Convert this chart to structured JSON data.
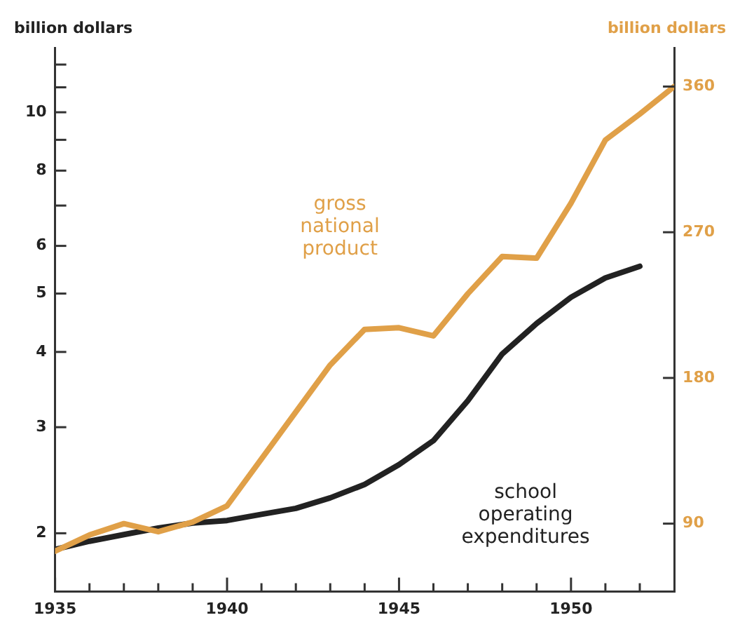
{
  "chart_data": {
    "type": "line",
    "ylabel": "billion dollars",
    "y2label": "billion dollars",
    "x": [
      1935,
      1936,
      1937,
      1938,
      1939,
      1940,
      1941,
      1942,
      1943,
      1944,
      1945,
      1946,
      1947,
      1948,
      1949,
      1950,
      1951,
      1952,
      1953
    ],
    "series": [
      {
        "name": "gross national product",
        "color": "#e0a048",
        "axis": "y2",
        "values": [
          73,
          83,
          90,
          85,
          91,
          101,
          130,
          159,
          188,
          210,
          211,
          206,
          232,
          255,
          254,
          288,
          327,
          343,
          360
        ]
      },
      {
        "name": "school operating expenditures",
        "color": "#222222",
        "x": [
          1935,
          1936,
          1937,
          1938,
          1939,
          1940,
          1941,
          1942,
          1943,
          1944,
          1945,
          1946,
          1947,
          1948,
          1949,
          1950,
          1951,
          1952
        ],
        "values": [
          1.88,
          1.94,
          1.99,
          2.04,
          2.08,
          2.1,
          2.15,
          2.2,
          2.29,
          2.41,
          2.6,
          2.85,
          3.32,
          3.97,
          4.46,
          4.93,
          5.31,
          5.55
        ]
      }
    ],
    "log": "y",
    "xlim": [
      1935,
      1953
    ],
    "xticks": [
      1935,
      {
        "value": 1936,
        "label": null
      },
      {
        "value": 1937,
        "label": null
      },
      {
        "value": 1938,
        "label": null
      },
      {
        "value": 1939,
        "label": null
      },
      1940,
      {
        "value": 1941,
        "label": null
      },
      {
        "value": 1942,
        "label": null
      },
      {
        "value": 1943,
        "label": null
      },
      {
        "value": 1944,
        "label": null
      },
      1945,
      {
        "value": 1946,
        "label": null
      },
      {
        "value": 1947,
        "label": null
      },
      {
        "value": 1948,
        "label": null
      },
      {
        "value": 1949,
        "label": null
      },
      1950,
      {
        "value": 1951,
        "label": null
      },
      {
        "value": 1952,
        "label": null
      }
    ],
    "ylim": [
      1.6,
      12.8
    ],
    "yticks": [
      2,
      3,
      4,
      5,
      6,
      {
        "value": 7,
        "label": null
      },
      8,
      {
        "value": 9,
        "label": null
      },
      10,
      {
        "value": 11,
        "label": null
      },
      {
        "value": 12,
        "label": null
      }
    ],
    "y2lim": [
      48,
      384
    ],
    "y2ticks": [
      90,
      180,
      270,
      360
    ],
    "grid": false,
    "legend": false,
    "marker": "none",
    "line_style": "solid"
  }
}
